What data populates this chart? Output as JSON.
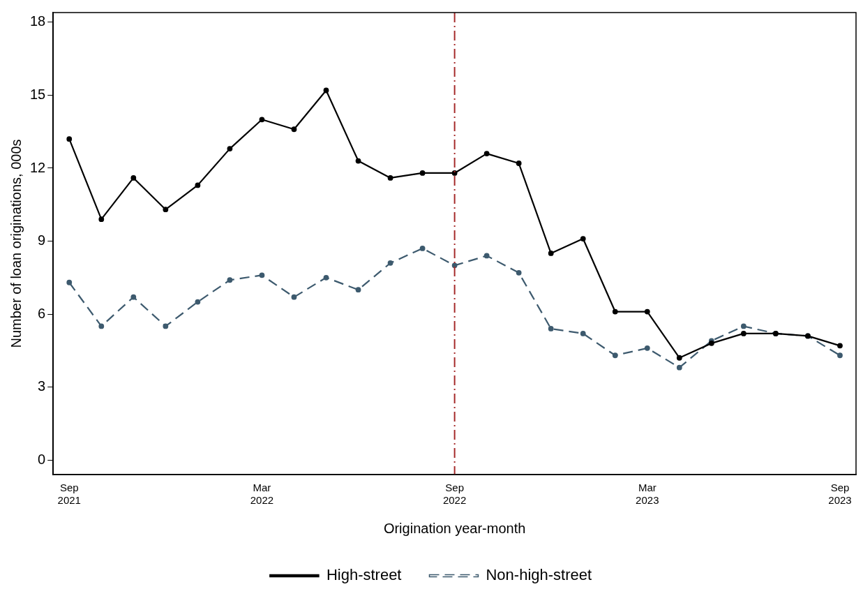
{
  "chart_data": {
    "type": "line",
    "xlabel": "Origination year-month",
    "ylabel": "Number of loan originations, 000s",
    "x": [
      "2021-09",
      "2021-10",
      "2021-11",
      "2021-12",
      "2022-01",
      "2022-02",
      "2022-03",
      "2022-04",
      "2022-05",
      "2022-06",
      "2022-07",
      "2022-08",
      "2022-09",
      "2022-10",
      "2022-11",
      "2022-12",
      "2023-01",
      "2023-02",
      "2023-03",
      "2023-04",
      "2023-05",
      "2023-06",
      "2023-07",
      "2023-08",
      "2023-09"
    ],
    "series": [
      {
        "name": "High-street",
        "color": "#000000",
        "line_style": "solid",
        "values": [
          13.2,
          9.9,
          11.6,
          10.3,
          11.3,
          12.8,
          14.0,
          13.6,
          15.2,
          12.3,
          11.6,
          11.8,
          11.8,
          12.6,
          12.2,
          8.5,
          9.1,
          6.1,
          6.1,
          4.2,
          4.8,
          5.2,
          5.2,
          5.1,
          4.7
        ]
      },
      {
        "name": "Non-high-street",
        "color": "#3d5a6e",
        "line_style": "dashed",
        "values": [
          7.3,
          5.5,
          6.7,
          5.5,
          6.5,
          7.4,
          7.6,
          6.7,
          7.5,
          7.0,
          8.1,
          8.7,
          8.0,
          8.4,
          7.7,
          5.4,
          5.2,
          4.3,
          4.6,
          3.8,
          4.9,
          5.5,
          5.2,
          5.1,
          4.3
        ]
      }
    ],
    "xlim": [
      "2021-08-16",
      "2023-09-16"
    ],
    "xticks": [
      {
        "value": "2021-09",
        "label": "Sep\n2021"
      },
      {
        "value": "2022-03",
        "label": "Mar\n2022"
      },
      {
        "value": "2022-09",
        "label": "Sep\n2022"
      },
      {
        "value": "2023-03",
        "label": "Mar\n2023"
      },
      {
        "value": "2023-09",
        "label": "Sep\n2023"
      }
    ],
    "ylim": [
      -0.6,
      18.4
    ],
    "yticks": [
      0,
      3,
      6,
      9,
      12,
      15,
      18
    ],
    "ref_lines": [
      {
        "axis": "x",
        "value": "2022-09",
        "color": "#a52a2a",
        "line_style": "dashdot"
      }
    ],
    "marker": "circle",
    "grid": false,
    "legend": "bottom"
  }
}
